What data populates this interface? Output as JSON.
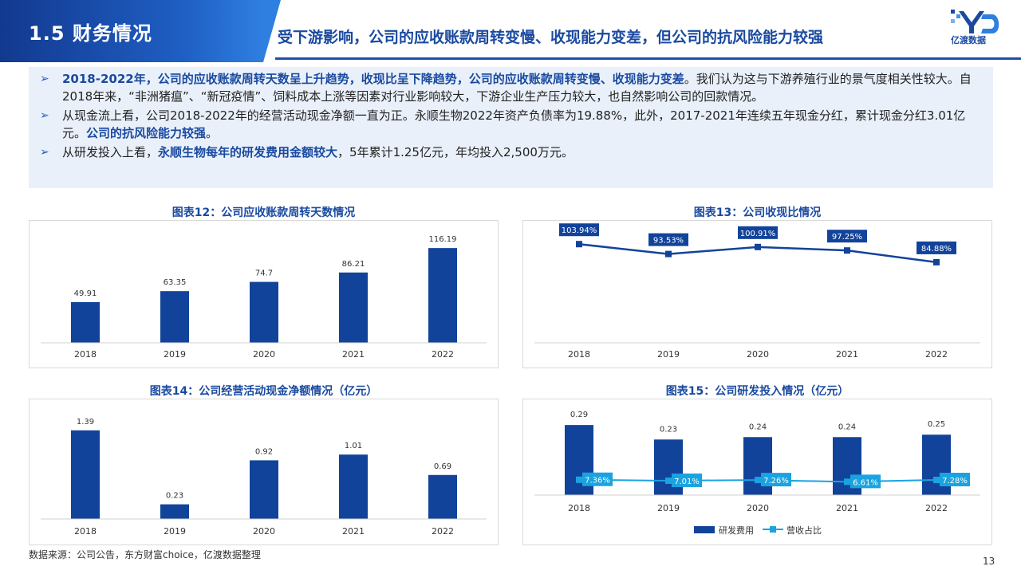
{
  "header": {
    "section": "1.5 财务情况",
    "headline": "受下游影响，公司的应收账款周转变慢、收现能力变差，但公司的抗风险能力较强",
    "logo_text": "亿渡数据"
  },
  "summary": {
    "b1_hl": "2018-2022年，公司的应收账款周转天数呈上升趋势，收现比呈下降趋势，公司的应收账款周转变慢、收现能力变差",
    "b1_text": "。我们认为这与下游养殖行业的景气度相关性较大。自2018年来，“非洲猪瘟”、“新冠疫情”、饲料成本上涨等因素对行业影响较大，下游企业生产压力较大，也自然影响公司的回款情况。",
    "b2_text": "从现金流上看，公司2018-2022年的经营活动现金净额一直为正。永顺生物2022年资产负债率为19.88%，此外，2017-2021年连续五年现金分红，累计现金分红3.01亿元。",
    "b2_hl": "公司的抗风险能力较强",
    "b2_end": "。",
    "b3_pre": "从研发投入上看，",
    "b3_hl": "永顺生物每年的研发费用金额较大",
    "b3_text": "，5年累计1.25亿元，年均投入2,500万元。"
  },
  "chart_data": [
    {
      "title": "图表12：公司应收账款周转天数情况",
      "type": "bar",
      "categories": [
        "2018",
        "2019",
        "2020",
        "2021",
        "2022"
      ],
      "values": [
        49.91,
        63.35,
        74.7,
        86.21,
        116.19
      ],
      "value_labels": [
        "49.91",
        "63.35",
        "74.7",
        "86.21",
        "116.19"
      ],
      "ylim": [
        0,
        130
      ],
      "color": "#12439a"
    },
    {
      "title": "图表13：公司收现比情况",
      "type": "line",
      "categories": [
        "2018",
        "2019",
        "2020",
        "2021",
        "2022"
      ],
      "values": [
        103.94,
        93.53,
        100.91,
        97.25,
        84.88
      ],
      "value_labels": [
        "103.94%",
        "93.53%",
        "100.91%",
        "97.25%",
        "84.88%"
      ],
      "ylim": [
        0,
        110
      ],
      "color": "#12439a"
    },
    {
      "title": "图表14：公司经营活动现金净额情况（亿元）",
      "type": "bar",
      "categories": [
        "2018",
        "2019",
        "2020",
        "2021",
        "2022"
      ],
      "values": [
        1.39,
        0.23,
        0.92,
        1.01,
        0.69
      ],
      "value_labels": [
        "1.39",
        "0.23",
        "0.92",
        "1.01",
        "0.69"
      ],
      "ylim": [
        0,
        1.5
      ],
      "color": "#12439a"
    },
    {
      "title": "图表15：公司研发投入情况（亿元）",
      "type": "bar+line",
      "categories": [
        "2018",
        "2019",
        "2020",
        "2021",
        "2022"
      ],
      "series": [
        {
          "name": "研发费用",
          "values": [
            0.29,
            0.23,
            0.24,
            0.24,
            0.25
          ],
          "value_labels": [
            "0.29",
            "0.23",
            "0.24",
            "0.24",
            "0.25"
          ],
          "color": "#12439a"
        },
        {
          "name": "营收占比",
          "values": [
            7.36,
            7.01,
            7.26,
            6.61,
            7.28
          ],
          "value_labels": [
            "7.36%",
            "7.01%",
            "7.26%",
            "6.61%",
            "7.28%"
          ],
          "color": "#1aa3e0"
        }
      ],
      "ylim": [
        0,
        0.33
      ]
    }
  ],
  "footer": {
    "source": "数据来源：公司公告，东方财富choice，亿渡数据整理",
    "page": "13"
  }
}
